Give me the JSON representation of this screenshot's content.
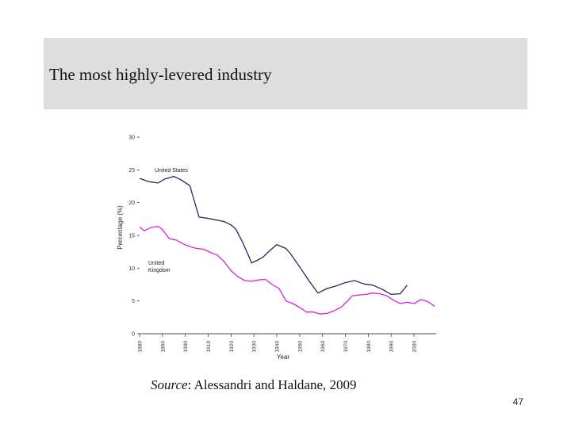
{
  "slide": {
    "title": "The most highly-levered industry",
    "source_label": "Source",
    "source_text": ": Alessandri and Haldane, 2009",
    "page_number": "47"
  },
  "chart_data": {
    "type": "line",
    "title": "",
    "xlabel": "Year",
    "ylabel": "Percentage (%)",
    "xlim": [
      1880,
      2009
    ],
    "ylim": [
      0,
      30
    ],
    "x_ticks": [
      1880,
      1890,
      1900,
      1910,
      1920,
      1930,
      1940,
      1950,
      1960,
      1970,
      1980,
      1990,
      2000
    ],
    "y_ticks": [
      0,
      5,
      10,
      15,
      20,
      25,
      30
    ],
    "grid": false,
    "series": [
      {
        "name": "United States",
        "color": "#1f2a5a",
        "x": [
          1880,
          1884,
          1888,
          1891,
          1895,
          1898,
          1902,
          1906,
          1910,
          1913,
          1917,
          1920,
          1922,
          1925,
          1929,
          1932,
          1934,
          1937,
          1940,
          1944,
          1946,
          1950,
          1954,
          1958,
          1962,
          1966,
          1970,
          1974,
          1978,
          1982,
          1986,
          1990,
          1994,
          1997
        ],
        "y": [
          23.7,
          23.2,
          23.0,
          23.6,
          24.0,
          23.5,
          22.6,
          17.8,
          17.6,
          17.4,
          17.1,
          16.6,
          16.0,
          14.0,
          10.8,
          11.3,
          11.7,
          12.7,
          13.6,
          13.0,
          12.2,
          10.2,
          8.1,
          6.2,
          6.9,
          7.3,
          7.8,
          8.1,
          7.6,
          7.4,
          6.8,
          6.0,
          6.1,
          7.4
        ]
      },
      {
        "name": "United Kingdom",
        "color": "#e020d8",
        "x": [
          1880,
          1882,
          1885,
          1888,
          1890,
          1893,
          1896,
          1899,
          1902,
          1905,
          1908,
          1911,
          1914,
          1917,
          1920,
          1923,
          1926,
          1929,
          1932,
          1935,
          1938,
          1941,
          1944,
          1947,
          1950,
          1953,
          1956,
          1959,
          1962,
          1965,
          1968,
          1971,
          1973,
          1976,
          1979,
          1982,
          1985,
          1988,
          1991,
          1994,
          1997,
          2000,
          2003,
          2006,
          2009
        ],
        "y": [
          16.3,
          15.7,
          16.2,
          16.4,
          15.9,
          14.5,
          14.3,
          13.7,
          13.3,
          13.0,
          12.9,
          12.4,
          12.0,
          11.0,
          9.6,
          8.7,
          8.1,
          8.0,
          8.2,
          8.3,
          7.5,
          6.9,
          5.0,
          4.6,
          4.0,
          3.3,
          3.3,
          3.0,
          3.1,
          3.5,
          4.0,
          5.0,
          5.8,
          5.9,
          6.0,
          6.2,
          6.1,
          5.8,
          5.1,
          4.6,
          4.8,
          4.6,
          5.2,
          4.9,
          4.2
        ]
      }
    ],
    "annotations": [
      {
        "text": "United States",
        "series": "United States"
      },
      {
        "text": "United\nKingdom",
        "series": "United Kingdom"
      }
    ]
  }
}
